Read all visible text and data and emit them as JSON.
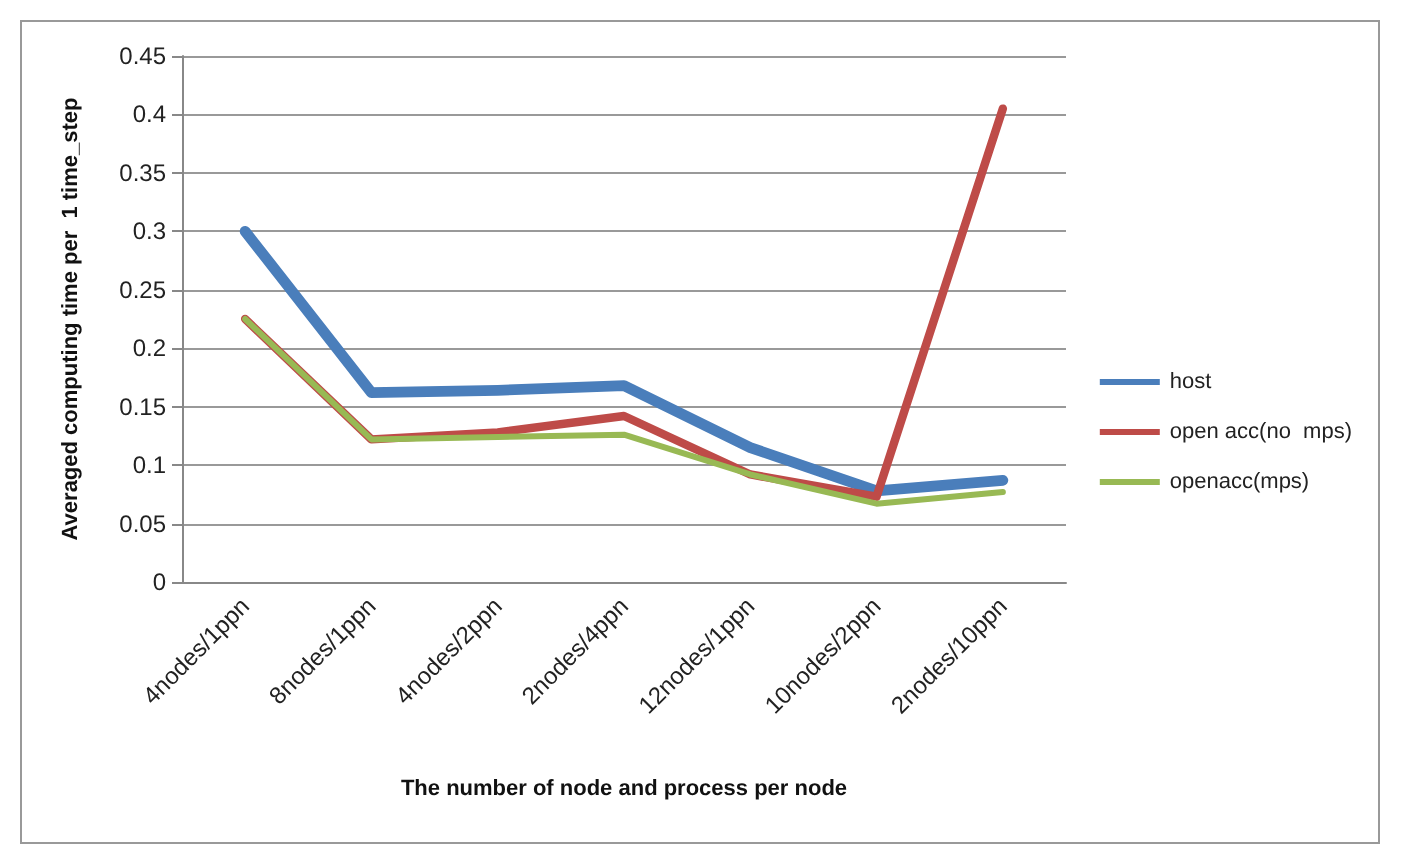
{
  "chart_data": {
    "type": "line",
    "xlabel": "The number of node and process per node",
    "ylabel": "Averaged computing time per  1 time_step",
    "categories": [
      "4nodes/1ppn",
      "8nodes/1ppn",
      "4nodes/2ppn",
      "2nodes/4ppn",
      "12nodes/1ppn",
      "10nodes/2ppn",
      "2nodes/10ppn"
    ],
    "series": [
      {
        "name": "host",
        "color": "#4a7ebb",
        "values": [
          0.3,
          0.162,
          0.164,
          0.168,
          0.115,
          0.078,
          0.087
        ]
      },
      {
        "name": "open acc(no  mps)",
        "color": "#be4b48",
        "values": [
          0.225,
          0.122,
          0.128,
          0.142,
          0.092,
          0.073,
          0.405
        ]
      },
      {
        "name": "openacc(mps)",
        "color": "#98b954",
        "values": [
          0.225,
          0.122,
          0.124,
          0.126,
          0.092,
          0.067,
          0.077
        ]
      }
    ],
    "ylim": [
      0,
      0.45
    ],
    "yticks": [
      0,
      0.05,
      0.1,
      0.15,
      0.2,
      0.25,
      0.3,
      0.35,
      0.4,
      0.45
    ],
    "grid": "y",
    "legend": "right",
    "marker": "none",
    "line_style": "solid"
  }
}
